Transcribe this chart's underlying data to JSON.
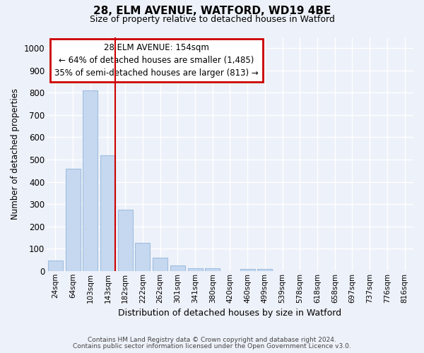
{
  "title": "28, ELM AVENUE, WATFORD, WD19 4BE",
  "subtitle": "Size of property relative to detached houses in Watford",
  "xlabel": "Distribution of detached houses by size in Watford",
  "ylabel": "Number of detached properties",
  "categories": [
    "24sqm",
    "64sqm",
    "103sqm",
    "143sqm",
    "182sqm",
    "222sqm",
    "262sqm",
    "301sqm",
    "341sqm",
    "380sqm",
    "420sqm",
    "460sqm",
    "499sqm",
    "539sqm",
    "578sqm",
    "618sqm",
    "658sqm",
    "697sqm",
    "737sqm",
    "776sqm",
    "816sqm"
  ],
  "values": [
    47,
    460,
    810,
    520,
    275,
    125,
    60,
    25,
    12,
    12,
    0,
    10,
    10,
    0,
    0,
    0,
    0,
    0,
    0,
    0,
    0
  ],
  "bar_color": "#c5d8f0",
  "bar_edge_color": "#a0bede",
  "background_color": "#edf1f9",
  "grid_color": "#ffffff",
  "vline_bar_index": 3,
  "annotation_title": "28 ELM AVENUE: 154sqm",
  "annotation_line1": "← 64% of detached houses are smaller (1,485)",
  "annotation_line2": "35% of semi-detached houses are larger (813) →",
  "annotation_box_color": "#ffffff",
  "annotation_box_edge_color": "#cc0000",
  "vline_color": "#cc0000",
  "ylim": [
    0,
    1050
  ],
  "yticks": [
    0,
    100,
    200,
    300,
    400,
    500,
    600,
    700,
    800,
    900,
    1000
  ],
  "footnote1": "Contains HM Land Registry data © Crown copyright and database right 2024.",
  "footnote2": "Contains public sector information licensed under the Open Government Licence v3.0."
}
